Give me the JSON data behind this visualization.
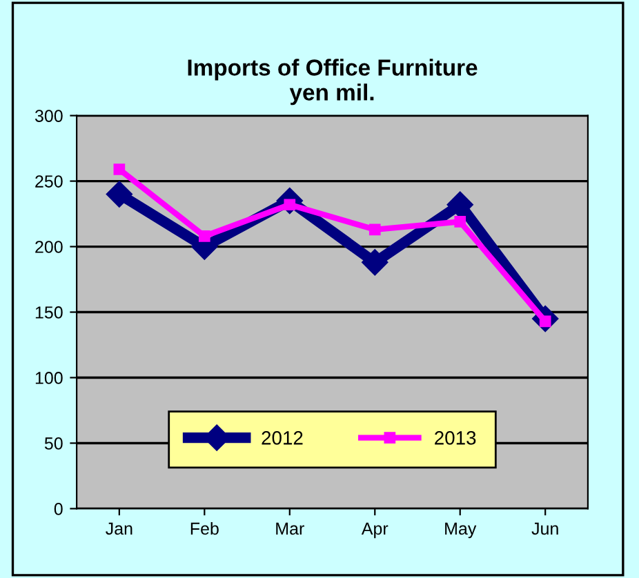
{
  "chart_data": {
    "type": "line",
    "title": "Imports of Office Furniture\nyen mil.",
    "categories": [
      "Jan",
      "Feb",
      "Mar",
      "Apr",
      "May",
      "Jun"
    ],
    "series": [
      {
        "name": "2012",
        "color": "#000080",
        "marker": "diamond",
        "values": [
          240,
          200,
          235,
          188,
          232,
          145
        ]
      },
      {
        "name": "2013",
        "color": "#ff00ff",
        "marker": "square",
        "values": [
          259,
          208,
          232,
          213,
          219,
          143
        ]
      }
    ],
    "ylim": [
      0,
      300
    ],
    "yticks": [
      0,
      50,
      100,
      150,
      200,
      250,
      300
    ],
    "grid": "y",
    "legend": "bottom"
  }
}
